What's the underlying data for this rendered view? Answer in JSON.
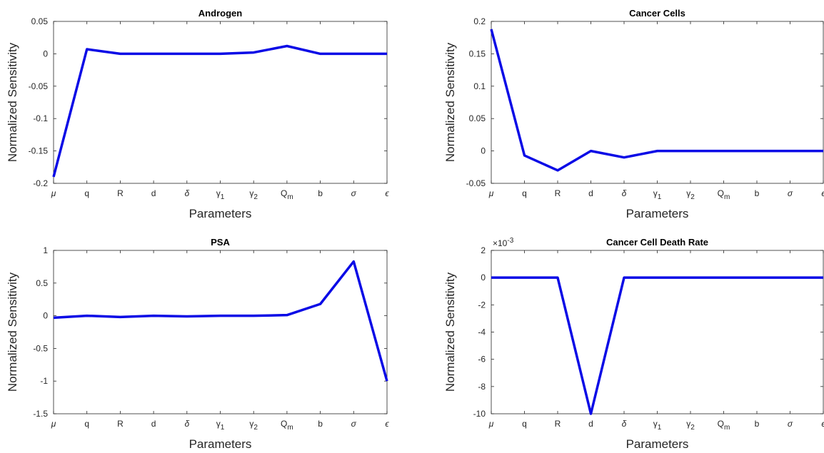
{
  "chart_data": [
    {
      "type": "line",
      "title": "Androgen",
      "xlabel": "Parameters",
      "ylabel": "Normalized Sensitivity",
      "categories": [
        "μ",
        "q",
        "R",
        "d",
        "δ",
        "γ1",
        "γ2",
        "Qm",
        "b",
        "σ",
        "ϵ"
      ],
      "ylim": [
        -0.2,
        0.05
      ],
      "yticks": [
        0.05,
        0,
        -0.05,
        -0.1,
        -0.15,
        -0.2
      ],
      "ytick_labels": [
        "0.05",
        "0",
        "-0.05",
        "-0.1",
        "-0.15",
        "-0.2"
      ],
      "exponent_label": "",
      "series": [
        {
          "values": [
            -0.19,
            0.007,
            0.0,
            0.0,
            0.0,
            0.0,
            0.002,
            0.012,
            0.0,
            0.0,
            0.0
          ],
          "color": "#0a0ae6"
        }
      ]
    },
    {
      "type": "line",
      "title": "Cancer Cells",
      "xlabel": "Parameters",
      "ylabel": "Normalized Sensitivity",
      "categories": [
        "μ",
        "q",
        "R",
        "d",
        "δ",
        "γ1",
        "γ2",
        "Qm",
        "b",
        "σ",
        "ϵ"
      ],
      "ylim": [
        -0.05,
        0.2
      ],
      "yticks": [
        0.2,
        0.15,
        0.1,
        0.05,
        0,
        -0.05
      ],
      "ytick_labels": [
        "0.2",
        "0.15",
        "0.1",
        "0.05",
        "0",
        "-0.05"
      ],
      "exponent_label": "",
      "series": [
        {
          "values": [
            0.188,
            -0.007,
            -0.03,
            0.0,
            -0.01,
            0.0,
            0.0,
            0.0,
            0.0,
            0.0,
            0.0
          ],
          "color": "#0a0ae6"
        }
      ]
    },
    {
      "type": "line",
      "title": "PSA",
      "xlabel": "Parameters",
      "ylabel": "Normalized Sensitivity",
      "categories": [
        "μ",
        "q",
        "R",
        "d",
        "δ",
        "γ1",
        "γ2",
        "Qm",
        "b",
        "σ",
        "ϵ"
      ],
      "ylim": [
        -1.5,
        1
      ],
      "yticks": [
        1,
        0.5,
        0,
        -0.5,
        -1,
        -1.5
      ],
      "ytick_labels": [
        "1",
        "0.5",
        "0",
        "-0.5",
        "-1",
        "-1.5"
      ],
      "exponent_label": "",
      "series": [
        {
          "values": [
            -0.03,
            0.0,
            -0.02,
            0.0,
            -0.01,
            0.0,
            0.0,
            0.01,
            0.18,
            0.83,
            -1.0
          ],
          "color": "#0a0ae6"
        }
      ]
    },
    {
      "type": "line",
      "title": "Cancer Cell Death Rate",
      "xlabel": "Parameters",
      "ylabel": "Normalized Sensitivity",
      "categories": [
        "μ",
        "q",
        "R",
        "d",
        "δ",
        "γ1",
        "γ2",
        "Qm",
        "b",
        "σ",
        "ϵ"
      ],
      "ylim": [
        -10,
        2
      ],
      "yticks": [
        2,
        0,
        -2,
        -4,
        -6,
        -8,
        -10
      ],
      "ytick_labels": [
        "2",
        "0",
        "-2",
        "-4",
        "-6",
        "-8",
        "-10"
      ],
      "exponent_label": "×10-3",
      "series": [
        {
          "values": [
            0,
            0,
            0,
            -10,
            0,
            0,
            0,
            0,
            0,
            0,
            0
          ],
          "color": "#0a0ae6"
        }
      ]
    }
  ]
}
